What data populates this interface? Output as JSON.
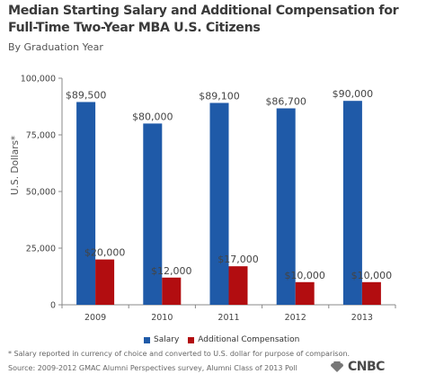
{
  "title": "Median Starting Salary and Additional Compensation for Full-Time Two-Year MBA U.S. Citizens",
  "subtitle": "By Graduation Year",
  "footnote": "* Salary reported in currency of choice and converted to U.S. dollar for purpose of comparison.",
  "source": "Source: 2009-2012 GMAC Alumni Perspectives survey, Alumni Class of 2013 Poll",
  "brand": "CNBC",
  "colors": {
    "salary": "#1f5aa8",
    "additional": "#b20d10",
    "axis": "#888888",
    "grid": "#cccccc"
  },
  "chart_data": {
    "type": "bar",
    "categories": [
      "2009",
      "2010",
      "2011",
      "2012",
      "2013"
    ],
    "series": [
      {
        "name": "Salary",
        "values": [
          89500,
          80000,
          89100,
          86700,
          90000
        ],
        "labels": [
          "$89,500",
          "$80,000",
          "$89,100",
          "$86,700",
          "$90,000"
        ]
      },
      {
        "name": "Additional Compensation",
        "values": [
          20000,
          12000,
          17000,
          10000,
          10000
        ],
        "labels": [
          "$20,000",
          "$12,000",
          "$17,000",
          "$10,000",
          "$10,000"
        ]
      }
    ],
    "title": "Median Starting Salary and Additional Compensation for Full-Time Two-Year MBA U.S. Citizens",
    "subtitle": "By Graduation Year",
    "xlabel": "",
    "ylabel": "U.S. Dollars*",
    "ylim": [
      0,
      100000
    ],
    "yticks": [
      0,
      25000,
      50000,
      75000,
      100000
    ],
    "ytick_labels": [
      "0",
      "25,000",
      "50,000",
      "75,000",
      "100,000"
    ],
    "grid": false,
    "legend": "bottom"
  }
}
